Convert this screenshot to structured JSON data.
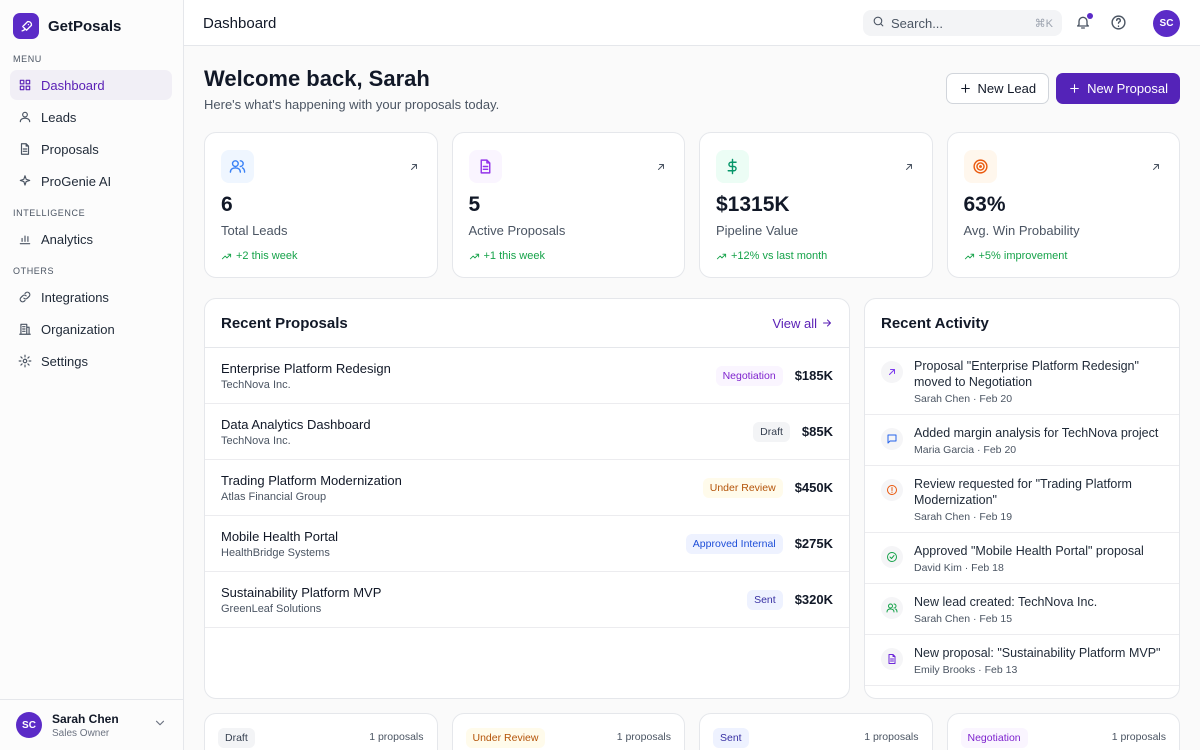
{
  "sidebar": {
    "brand": "GetPosals",
    "sections": [
      {
        "label": "MENU",
        "items": [
          "Dashboard",
          "Leads",
          "Proposals",
          "ProGenie AI"
        ]
      },
      {
        "label": "INTELLIGENCE",
        "items": [
          "Analytics"
        ]
      },
      {
        "label": "OTHERS",
        "items": [
          "Integrations",
          "Organization",
          "Settings"
        ]
      }
    ],
    "user": {
      "initials": "SC",
      "name": "Sarah Chen",
      "role": "Sales Owner"
    }
  },
  "topbar": {
    "title": "Dashboard",
    "search": "Search...",
    "shortcut": "⌘K",
    "avatar": "SC"
  },
  "header": {
    "title": "Welcome back, Sarah",
    "subtitle": "Here's what's happening with your proposals today.",
    "buttons": [
      "New Lead",
      "New Proposal"
    ]
  },
  "stats": [
    {
      "value": "6",
      "label": "Total Leads",
      "change": "+2 this week"
    },
    {
      "value": "5",
      "label": "Active Proposals",
      "change": "+1 this week"
    },
    {
      "value": "$1315K",
      "label": "Pipeline Value",
      "change": "+12% vs last month"
    },
    {
      "value": "63%",
      "label": "Avg. Win Probability",
      "change": "+5% improvement"
    }
  ],
  "recent_proposals": {
    "title": "Recent Proposals",
    "link": "View all",
    "rows": [
      {
        "name": "Enterprise Platform Redesign",
        "client": "TechNova Inc.",
        "status": "Negotiation",
        "amount": "$185K"
      },
      {
        "name": "Data Analytics Dashboard",
        "client": "TechNova Inc.",
        "status": "Draft",
        "amount": "$85K"
      },
      {
        "name": "Trading Platform Modernization",
        "client": "Atlas Financial Group",
        "status": "Under Review",
        "amount": "$450K"
      },
      {
        "name": "Mobile Health Portal",
        "client": "HealthBridge Systems",
        "status": "Approved Internal",
        "amount": "$275K"
      },
      {
        "name": "Sustainability Platform MVP",
        "client": "GreenLeaf Solutions",
        "status": "Sent",
        "amount": "$320K"
      }
    ]
  },
  "recent_activity": {
    "title": "Recent Activity",
    "items": [
      {
        "text": "Proposal \"Enterprise Platform Redesign\" moved to Negotiation",
        "meta": "Sarah Chen · Feb 20"
      },
      {
        "text": "Added margin analysis for TechNova project",
        "meta": "Maria Garcia · Feb 20"
      },
      {
        "text": "Review requested for \"Trading Platform Modernization\"",
        "meta": "Sarah Chen · Feb 19"
      },
      {
        "text": "Approved \"Mobile Health Portal\" proposal",
        "meta": "David Kim · Feb 18"
      },
      {
        "text": "New lead created: TechNova Inc.",
        "meta": "Sarah Chen · Feb 15"
      },
      {
        "text": "New proposal: \"Sustainability Platform MVP\"",
        "meta": "Emily Brooks · Feb 13"
      }
    ]
  },
  "pipeline": [
    {
      "status": "Draft",
      "count": "1 proposals"
    },
    {
      "status": "Under Review",
      "count": "1 proposals"
    },
    {
      "status": "Sent",
      "count": "1 proposals"
    },
    {
      "status": "Negotiation",
      "count": "1 proposals"
    }
  ]
}
